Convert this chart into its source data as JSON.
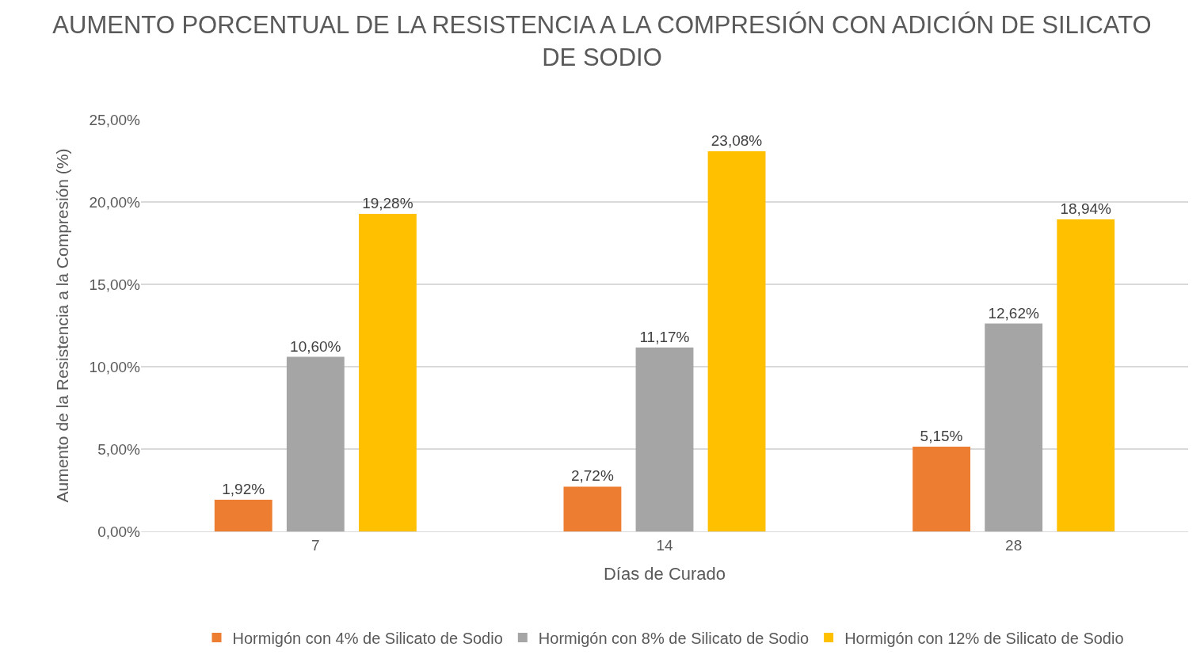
{
  "chart_data": {
    "type": "bar",
    "title": "AUMENTO PORCENTUAL DE LA RESISTENCIA A LA COMPRESIÓN CON ADICIÓN DE SILICATO DE SODIO",
    "xlabel": "Días de Curado",
    "ylabel": "Aumento de la Resistencia a la Compresión (%)",
    "categories": [
      "7",
      "14",
      "28"
    ],
    "series": [
      {
        "name": "Hormigón con 4% de Silicato de Sodio",
        "color": "#ed7d31",
        "values": [
          1.92,
          2.72,
          5.15
        ],
        "value_labels": [
          "1,92%",
          "2,72%",
          "5,15%"
        ]
      },
      {
        "name": "Hormigón con 8% de Silicato de Sodio",
        "color": "#a5a5a5",
        "values": [
          10.6,
          11.17,
          12.62
        ],
        "value_labels": [
          "10,60%",
          "11,17%",
          "12,62%"
        ]
      },
      {
        "name": "Hormigón con 12% de Silicato de Sodio",
        "color": "#ffc000",
        "values": [
          19.28,
          23.08,
          18.94
        ],
        "value_labels": [
          "19,28%",
          "23,08%",
          "18,94%"
        ]
      }
    ],
    "ylim": [
      0,
      25
    ],
    "yticks": [
      {
        "value": 0,
        "label": "0,00%"
      },
      {
        "value": 5,
        "label": "5,00%"
      },
      {
        "value": 10,
        "label": "10,00%"
      },
      {
        "value": 15,
        "label": "15,00%"
      },
      {
        "value": 20,
        "label": "20,00%"
      },
      {
        "value": 25,
        "label": "25,00%"
      }
    ],
    "grid": "y",
    "legend": "bottom"
  }
}
